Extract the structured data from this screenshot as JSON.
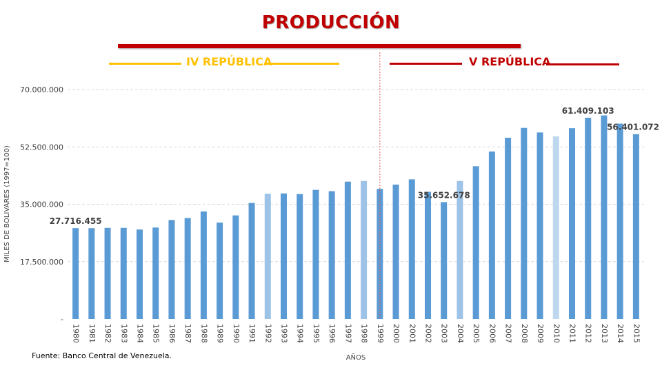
{
  "header": {
    "title": "PRODUCCIÓN",
    "era_left": "IV REPÚBLICA",
    "era_right": "V REPÚBLICA"
  },
  "source": "Fuente: Banco Central de Venezuela.",
  "colors": {
    "title": "#c00000",
    "era_left": "#ffc000",
    "era_right": "#c00000",
    "bar": "#5b9bd5",
    "bar_light": "#9dc3e6",
    "bar_lighter": "#bdd7ee",
    "divider": "#e06060"
  },
  "chart_data": {
    "type": "bar",
    "xlabel": "AÑOS",
    "ylabel": "MILES DE BOLIVARES (1997=100)",
    "ylim": [
      0,
      70000000
    ],
    "yticks": [
      {
        "value": 0,
        "label": "-"
      },
      {
        "value": 17500000,
        "label": "17.500.000"
      },
      {
        "value": 35000000,
        "label": "35.000.000"
      },
      {
        "value": 52500000,
        "label": "52.500.000"
      },
      {
        "value": 70000000,
        "label": "70.000.000"
      }
    ],
    "grid": "horizontal dashed",
    "categories": [
      "1980",
      "1981",
      "1982",
      "1983",
      "1984",
      "1985",
      "1986",
      "1987",
      "1988",
      "1989",
      "1990",
      "1991",
      "1992",
      "1993",
      "1994",
      "1995",
      "1996",
      "1997",
      "1998",
      "1999",
      "2000",
      "2001",
      "2002",
      "2003",
      "2004",
      "2005",
      "2006",
      "2007",
      "2008",
      "2009",
      "2010",
      "2011",
      "2012",
      "2013",
      "2014",
      "2015"
    ],
    "values": [
      27716455,
      27700000,
      27800000,
      27800000,
      27300000,
      27900000,
      30200000,
      30800000,
      32800000,
      29400000,
      31600000,
      35400000,
      38200000,
      38300000,
      38100000,
      39400000,
      39000000,
      41900000,
      42100000,
      39700000,
      41000000,
      42600000,
      38800000,
      35652678,
      42100000,
      46600000,
      51100000,
      55300000,
      58300000,
      56900000,
      55700000,
      58200000,
      61409103,
      62100000,
      59600000,
      56401072
    ],
    "bar_shades": [
      "dark",
      "dark",
      "dark",
      "dark",
      "dark",
      "dark",
      "dark",
      "dark",
      "dark",
      "dark",
      "dark",
      "dark",
      "light",
      "dark",
      "dark",
      "dark",
      "dark",
      "dark",
      "light",
      "dark",
      "dark",
      "dark",
      "dark",
      "dark",
      "light",
      "dark",
      "dark",
      "dark",
      "dark",
      "dark",
      "lighter",
      "dark",
      "dark",
      "dark",
      "dark",
      "dark"
    ],
    "data_labels": [
      {
        "category": "1980",
        "label": "27.716.455"
      },
      {
        "category": "2003",
        "label": "35.652.678"
      },
      {
        "category": "2012",
        "label": "61.409.103"
      },
      {
        "category": "2015",
        "label": "56.401.072"
      }
    ],
    "divider_after": "1999"
  }
}
